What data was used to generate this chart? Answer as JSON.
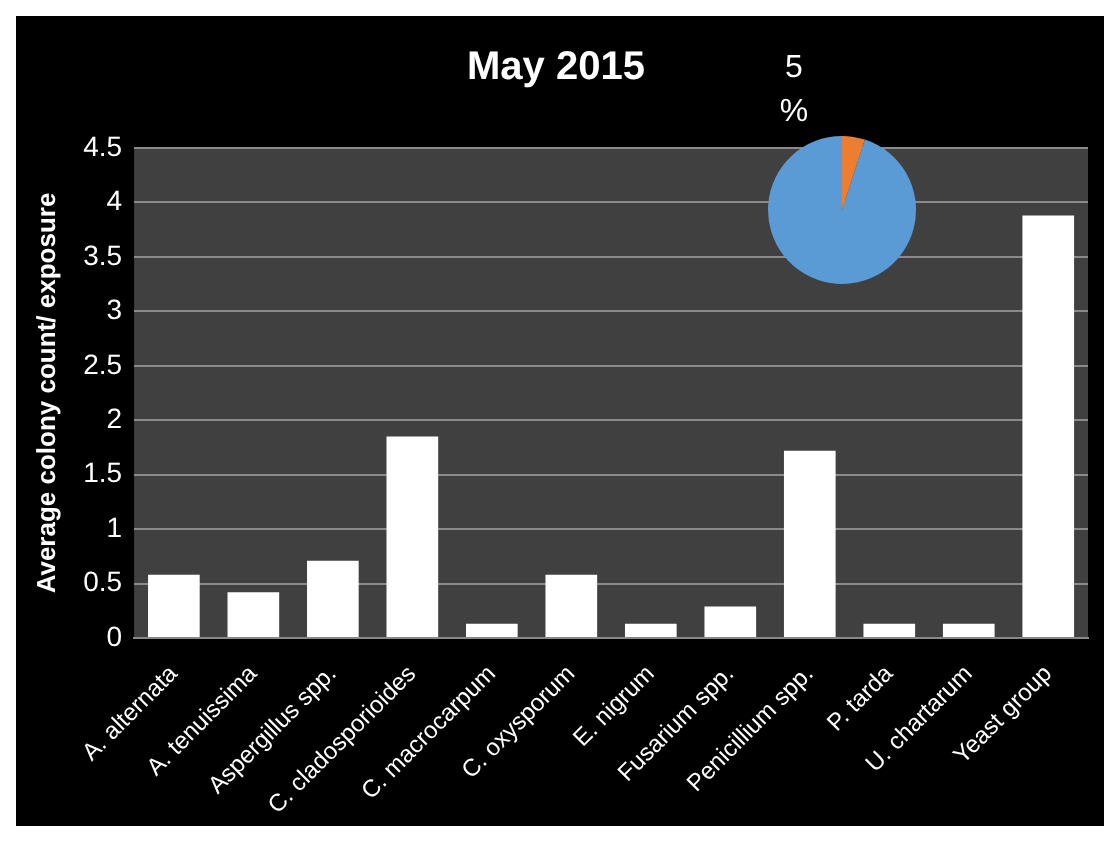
{
  "chart_data": [
    {
      "type": "bar",
      "title": "May 2015",
      "ylabel": "Average colony count/ exposure",
      "categories": [
        "A. alternata",
        "A. tenuissima",
        "Aspergillus spp.",
        "C. cladosporioides",
        "C. macrocarpum",
        "C. oxysporum",
        "E. nigrum",
        "Fusarium spp.",
        "Penicillium spp.",
        "P. tarda",
        "U. chartarum",
        "Yeast group"
      ],
      "values": [
        0.58,
        0.42,
        0.71,
        1.85,
        0.13,
        0.58,
        0.13,
        0.29,
        1.72,
        0.13,
        0.13,
        3.88
      ],
      "color": "#ffffff",
      "ylim": [
        0,
        4.5
      ],
      "yticks": [
        0,
        0.5,
        1,
        1.5,
        2,
        2.5,
        3,
        3.5,
        4,
        4.5
      ],
      "grid": "y",
      "legend": false
    },
    {
      "type": "pie",
      "categories": [
        null,
        null
      ],
      "values": [
        5,
        95
      ],
      "colors": [
        "#ed7d31",
        "#5b9bd5"
      ],
      "value_labels": [
        "5 %",
        null
      ],
      "legend": false
    }
  ]
}
